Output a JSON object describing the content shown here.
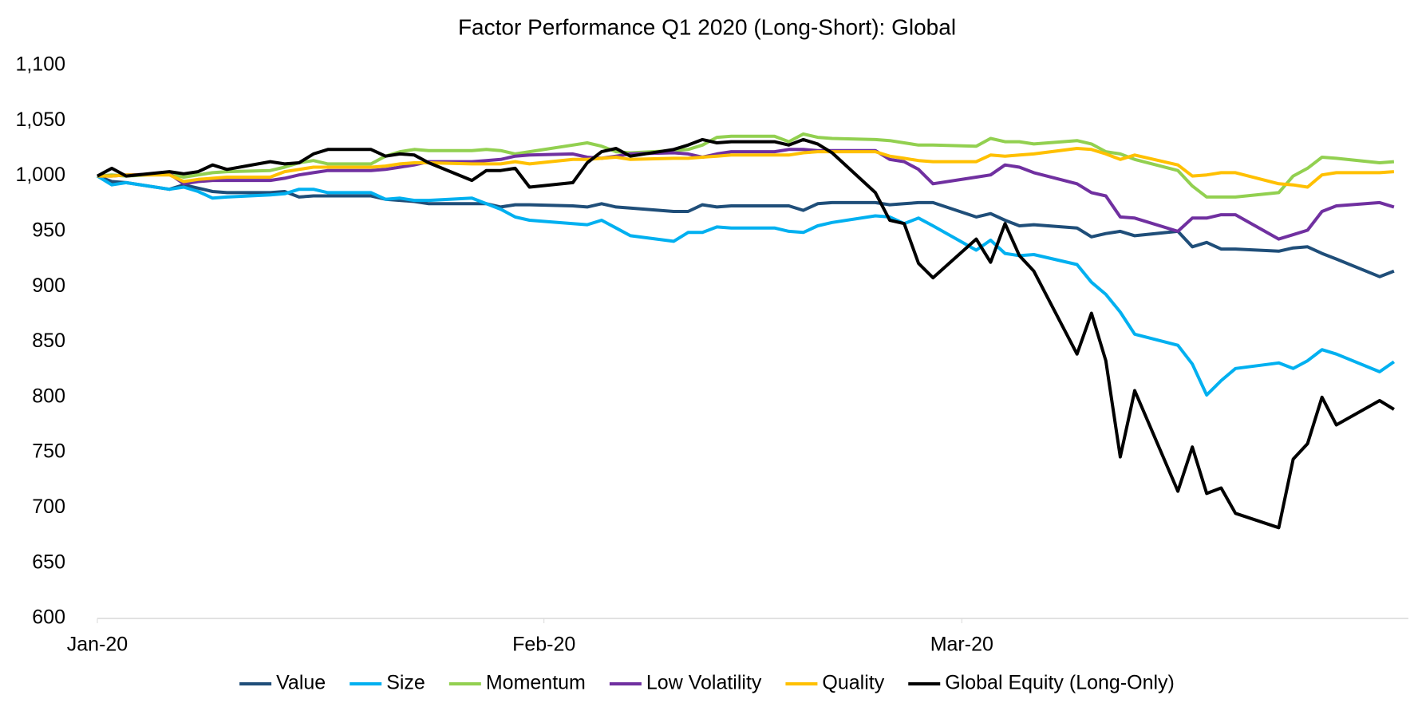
{
  "chart_data": {
    "type": "line",
    "title": "Factor Performance Q1 2020 (Long-Short): Global",
    "x": [
      0,
      1,
      2,
      5,
      6,
      7,
      8,
      9,
      12,
      13,
      14,
      15,
      16,
      19,
      20,
      21,
      22,
      23,
      26,
      27,
      28,
      29,
      30,
      33,
      34,
      35,
      36,
      37,
      40,
      41,
      42,
      43,
      44,
      47,
      48,
      49,
      50,
      51,
      54,
      55,
      56,
      57,
      58,
      61,
      62,
      63,
      64,
      65,
      68,
      69,
      70,
      71,
      72,
      75,
      76,
      77,
      78,
      79,
      82,
      83,
      84,
      85,
      86,
      89,
      90
    ],
    "xlim": [
      0,
      91
    ],
    "xticks": [
      {
        "value": 0,
        "label": "Jan-20"
      },
      {
        "value": 31,
        "label": "Feb-20"
      },
      {
        "value": 60,
        "label": "Mar-20"
      }
    ],
    "ylim": [
      600,
      1100
    ],
    "yticks": [
      600,
      650,
      700,
      750,
      800,
      850,
      900,
      950,
      {
        "value": 1000,
        "label": "1,000"
      },
      {
        "value": 1050,
        "label": "1,050"
      },
      {
        "value": 1100,
        "label": "1,100"
      }
    ],
    "grid": false,
    "legend": "bottom",
    "series": [
      {
        "name": "Value",
        "color": "#1f4e79",
        "values": [
          1000,
          995,
          994,
          988,
          992,
          989,
          986,
          985,
          985,
          986,
          981,
          982,
          982,
          982,
          979,
          978,
          977,
          975,
          975,
          975,
          972,
          974,
          974,
          973,
          972,
          975,
          972,
          971,
          968,
          968,
          974,
          972,
          973,
          973,
          973,
          969,
          975,
          976,
          976,
          974,
          975,
          976,
          976,
          963,
          966,
          960,
          955,
          956,
          953,
          945,
          948,
          950,
          946,
          950,
          936,
          940,
          934,
          934,
          932,
          935,
          936,
          930,
          925,
          909,
          914
        ]
      },
      {
        "name": "Size",
        "color": "#00b0f0",
        "values": [
          1000,
          992,
          994,
          988,
          990,
          986,
          980,
          981,
          983,
          984,
          988,
          988,
          985,
          985,
          979,
          980,
          978,
          978,
          980,
          975,
          970,
          963,
          960,
          957,
          956,
          960,
          953,
          946,
          941,
          949,
          949,
          954,
          953,
          953,
          950,
          949,
          955,
          958,
          964,
          963,
          957,
          962,
          955,
          933,
          942,
          930,
          928,
          929,
          920,
          904,
          893,
          877,
          857,
          847,
          830,
          802,
          815,
          826,
          831,
          826,
          833,
          843,
          839,
          823,
          832
        ]
      },
      {
        "name": "Momentum",
        "color": "#92d050",
        "values": [
          1000,
          1001,
          1000,
          1002,
          999,
          1001,
          1003,
          1004,
          1005,
          1008,
          1012,
          1014,
          1011,
          1011,
          1018,
          1022,
          1024,
          1023,
          1023,
          1024,
          1023,
          1020,
          1022,
          1028,
          1030,
          1027,
          1022,
          1021,
          1023,
          1024,
          1028,
          1035,
          1036,
          1036,
          1031,
          1038,
          1035,
          1034,
          1033,
          1032,
          1030,
          1028,
          1028,
          1027,
          1034,
          1031,
          1031,
          1029,
          1032,
          1029,
          1022,
          1020,
          1015,
          1005,
          991,
          981,
          981,
          981,
          985,
          1000,
          1007,
          1017,
          1016,
          1012,
          1013
        ]
      },
      {
        "name": "Low Volatility",
        "color": "#7030a0",
        "values": [
          1000,
          1000,
          1001,
          1002,
          993,
          995,
          996,
          996,
          996,
          998,
          1001,
          1003,
          1005,
          1005,
          1006,
          1008,
          1010,
          1013,
          1013,
          1014,
          1015,
          1018,
          1019,
          1020,
          1017,
          1016,
          1018,
          1020,
          1021,
          1020,
          1017,
          1020,
          1022,
          1022,
          1024,
          1024,
          1023,
          1023,
          1023,
          1015,
          1013,
          1006,
          993,
          999,
          1001,
          1010,
          1008,
          1003,
          993,
          985,
          982,
          963,
          962,
          950,
          962,
          962,
          965,
          965,
          943,
          947,
          951,
          968,
          973,
          976,
          972
        ]
      },
      {
        "name": "Quality",
        "color": "#ffc000",
        "values": [
          1000,
          1000,
          1001,
          1001,
          995,
          997,
          998,
          999,
          999,
          1004,
          1006,
          1008,
          1008,
          1008,
          1009,
          1011,
          1012,
          1012,
          1011,
          1011,
          1011,
          1013,
          1011,
          1015,
          1015,
          1016,
          1017,
          1015,
          1016,
          1016,
          1017,
          1018,
          1019,
          1019,
          1019,
          1021,
          1022,
          1022,
          1022,
          1018,
          1016,
          1014,
          1013,
          1013,
          1019,
          1018,
          1019,
          1020,
          1025,
          1024,
          1020,
          1015,
          1019,
          1010,
          1000,
          1001,
          1003,
          1003,
          993,
          992,
          990,
          1001,
          1003,
          1003,
          1004
        ]
      },
      {
        "name": "Global Equity (Long-Only)",
        "color": "#000000",
        "values": [
          1000,
          1007,
          1000,
          1004,
          1002,
          1004,
          1010,
          1006,
          1013,
          1011,
          1012,
          1020,
          1024,
          1024,
          1018,
          1020,
          1019,
          1012,
          996,
          1005,
          1005,
          1007,
          990,
          994,
          1012,
          1022,
          1025,
          1018,
          1024,
          1028,
          1033,
          1030,
          1031,
          1031,
          1028,
          1033,
          1029,
          1021,
          985,
          960,
          957,
          921,
          908,
          943,
          922,
          957,
          928,
          914,
          839,
          876,
          833,
          746,
          806,
          715,
          755,
          713,
          718,
          695,
          682,
          744,
          758,
          800,
          775,
          797,
          789
        ]
      }
    ]
  }
}
